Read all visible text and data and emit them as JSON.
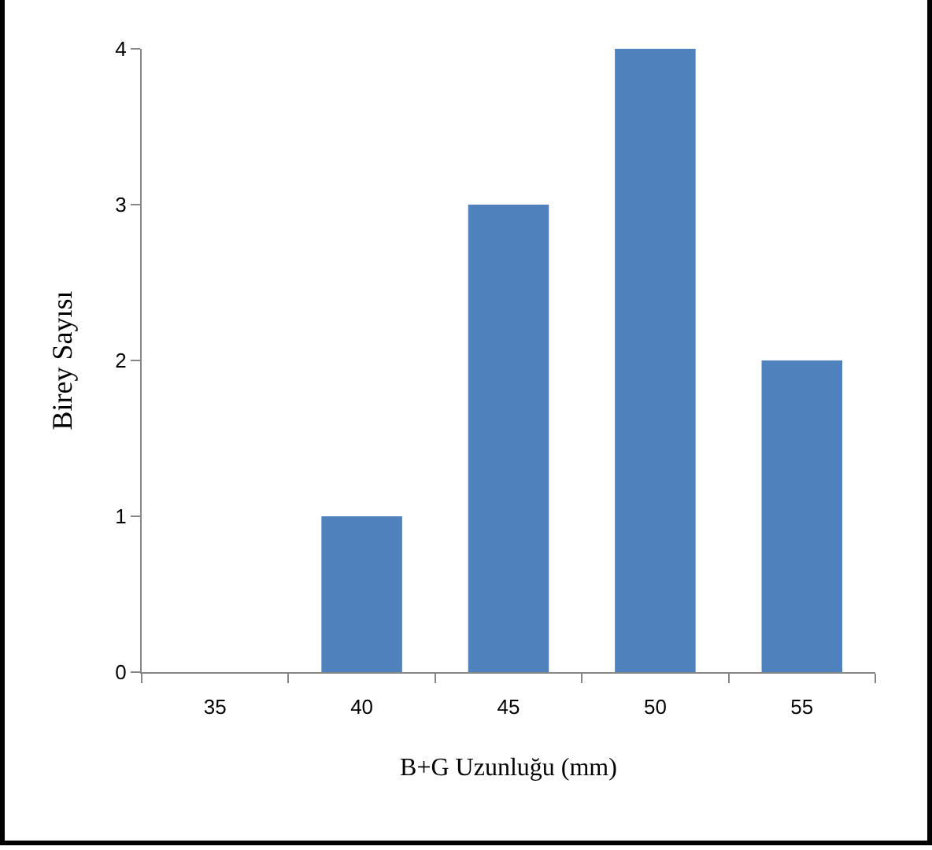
{
  "chart_data": {
    "type": "bar",
    "xlabel": "B+G Uzunluğu (mm)",
    "ylabel": "Birey Sayısı",
    "categories": [
      "35",
      "40",
      "45",
      "50",
      "55"
    ],
    "values": [
      0,
      1,
      3,
      4,
      2
    ],
    "color": "#4f81bd",
    "ylim": [
      0,
      4
    ],
    "yticks": [
      0,
      1,
      2,
      3,
      4
    ],
    "grid": false,
    "legend": false
  }
}
